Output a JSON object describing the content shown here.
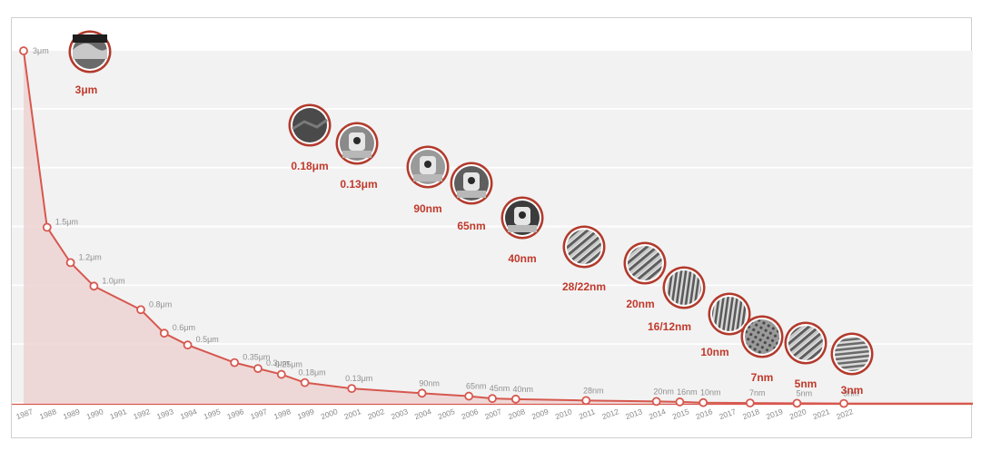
{
  "chart_data": {
    "type": "area",
    "title": "",
    "xlabel": "",
    "ylabel": "",
    "grid": true,
    "colors": {
      "line": "#d6584f",
      "fill": "#edd3d2",
      "band": "#f2f2f2",
      "ring": "#b23a2c",
      "point_label": "#909090",
      "image_label": "#c0392b"
    },
    "x": [
      "1987",
      "1988",
      "1989",
      "1990",
      "1991",
      "1992",
      "1993",
      "1994",
      "1995",
      "1996",
      "1997",
      "1998",
      "1999",
      "2000",
      "2001",
      "2002",
      "2003",
      "2004",
      "2005",
      "2006",
      "2007",
      "2008",
      "2009",
      "2010",
      "2011",
      "2012",
      "2013",
      "2014",
      "2015",
      "2016",
      "2017",
      "2018",
      "2019",
      "2020",
      "2021",
      "2022"
    ],
    "series": [
      {
        "values": [
          {
            "x": "1987",
            "y": 3.0,
            "label": "3μm"
          },
          {
            "x": "1988",
            "y": 1.5,
            "label": "1.5μm"
          },
          {
            "x": "1989",
            "y": 1.2,
            "label": "1.2μm"
          },
          {
            "x": "1990",
            "y": 1.0,
            "label": "1.0μm"
          },
          {
            "x": "1992",
            "y": 0.8,
            "label": "0.8μm"
          },
          {
            "x": "1993",
            "y": 0.6,
            "label": "0.6μm"
          },
          {
            "x": "1994",
            "y": 0.5,
            "label": "0.5μm"
          },
          {
            "x": "1996",
            "y": 0.35,
            "label": "0.35μm"
          },
          {
            "x": "1997",
            "y": 0.3,
            "label": "0.3μm"
          },
          {
            "x": "1998",
            "y": 0.25,
            "label": "0.25μm"
          },
          {
            "x": "1999",
            "y": 0.18,
            "label": "0.18μm"
          },
          {
            "x": "2001",
            "y": 0.13,
            "label": "0.13μm"
          },
          {
            "x": "2004",
            "y": 0.09,
            "label": "90nm"
          },
          {
            "x": "2006",
            "y": 0.065,
            "label": "65nm"
          },
          {
            "x": "2007",
            "y": 0.045,
            "label": "45nm"
          },
          {
            "x": "2008",
            "y": 0.04,
            "label": "40nm"
          },
          {
            "x": "2011",
            "y": 0.028,
            "label": "28nm"
          },
          {
            "x": "2014",
            "y": 0.02,
            "label": "20nm"
          },
          {
            "x": "2015",
            "y": 0.016,
            "label": "16nm"
          },
          {
            "x": "2016",
            "y": 0.01,
            "label": "10nm"
          },
          {
            "x": "2018",
            "y": 0.007,
            "label": "7nm"
          },
          {
            "x": "2020",
            "y": 0.005,
            "label": "5nm"
          },
          {
            "x": "2022",
            "y": 0.003,
            "label": "3nm"
          }
        ]
      }
    ],
    "image_callouts": [
      {
        "label": "3μm",
        "pattern": "cross-section",
        "tone": "#6a6a6a"
      },
      {
        "label": "0.18μm",
        "pattern": "dark-trench",
        "tone": "#4a4a4a"
      },
      {
        "label": "0.13μm",
        "pattern": "gate",
        "tone": "#8a8a8a"
      },
      {
        "label": "90nm",
        "pattern": "gate",
        "tone": "#9a9a9a"
      },
      {
        "label": "65nm",
        "pattern": "gate",
        "tone": "#5e5e5e"
      },
      {
        "label": "40nm",
        "pattern": "gate",
        "tone": "#3c3c3c"
      },
      {
        "label": "28/22nm",
        "pattern": "fins",
        "tone": "#8c8c8c"
      },
      {
        "label": "20nm",
        "pattern": "fins",
        "tone": "#6e6e6e"
      },
      {
        "label": "16/12nm",
        "pattern": "vertical-lines",
        "tone": "#9c9c9c"
      },
      {
        "label": "10nm",
        "pattern": "vertical-lines",
        "tone": "#7a7a7a"
      },
      {
        "label": "7nm",
        "pattern": "mesh",
        "tone": "#8a8a8a"
      },
      {
        "label": "5nm",
        "pattern": "fins",
        "tone": "#9a9a9a"
      },
      {
        "label": "3nm",
        "pattern": "horizontal-lines",
        "tone": "#a8a8a8"
      }
    ]
  }
}
